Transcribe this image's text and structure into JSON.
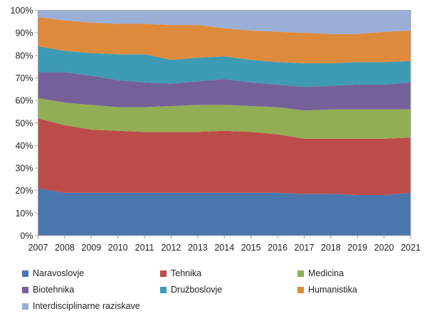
{
  "chart_data": {
    "type": "area",
    "stacked": true,
    "percent_stacked": true,
    "title": "",
    "xlabel": "",
    "ylabel": "",
    "ylim": [
      0,
      100
    ],
    "y_tick_labels": [
      "0%",
      "10%",
      "20%",
      "30%",
      "40%",
      "50%",
      "60%",
      "70%",
      "80%",
      "90%",
      "100%"
    ],
    "grid": false,
    "legend_position": "bottom",
    "categories": [
      "2007",
      "2008",
      "2009",
      "2010",
      "2011",
      "2012",
      "2013",
      "2014",
      "2015",
      "2016",
      "2017",
      "2018",
      "2019",
      "2020",
      "2021"
    ],
    "series": [
      {
        "name": "Naravoslovje",
        "color": "#4976AC",
        "values": [
          21,
          19,
          19,
          19,
          19,
          19,
          19,
          19,
          19,
          19,
          18.5,
          18.5,
          18,
          18,
          19
        ]
      },
      {
        "name": "Tehnika",
        "color": "#BB4C49",
        "values": [
          31,
          30,
          28,
          27.5,
          27,
          27,
          27,
          27.5,
          27,
          26,
          24.5,
          24.5,
          25,
          25,
          24.5
        ]
      },
      {
        "name": "Medicina",
        "color": "#92AE54",
        "values": [
          9,
          10,
          11,
          10.5,
          11,
          11.5,
          12,
          11.5,
          11.5,
          12,
          12.5,
          13,
          13,
          13,
          12.5
        ]
      },
      {
        "name": "Biotehnika",
        "color": "#75619A",
        "values": [
          11.5,
          13.5,
          13,
          12,
          11,
          10,
          10.5,
          11.5,
          10.5,
          10,
          10.5,
          10.5,
          11,
          11,
          12
        ]
      },
      {
        "name": "Družboslovje",
        "color": "#3E9BB4",
        "values": [
          11.5,
          9.5,
          10,
          11.5,
          12.5,
          10.5,
          10.5,
          10,
          10,
          10,
          10.5,
          10,
          10,
          10,
          9.5
        ]
      },
      {
        "name": "Humanistika",
        "color": "#DE8A3D",
        "values": [
          13,
          13.5,
          13.5,
          13.5,
          13.5,
          15.5,
          14.5,
          12.5,
          13,
          13.5,
          13.5,
          13,
          12.5,
          13.5,
          13.5
        ]
      },
      {
        "name": "Interdisciplinarne raziskave",
        "color": "#9AAFD6",
        "values": [
          3,
          4.5,
          5.5,
          6,
          6,
          6.5,
          6.5,
          8,
          9,
          9.5,
          10,
          10.5,
          10.5,
          9.5,
          9
        ]
      }
    ],
    "axis_color": "#a6a6a6",
    "text_color": "#1f1f1f"
  }
}
